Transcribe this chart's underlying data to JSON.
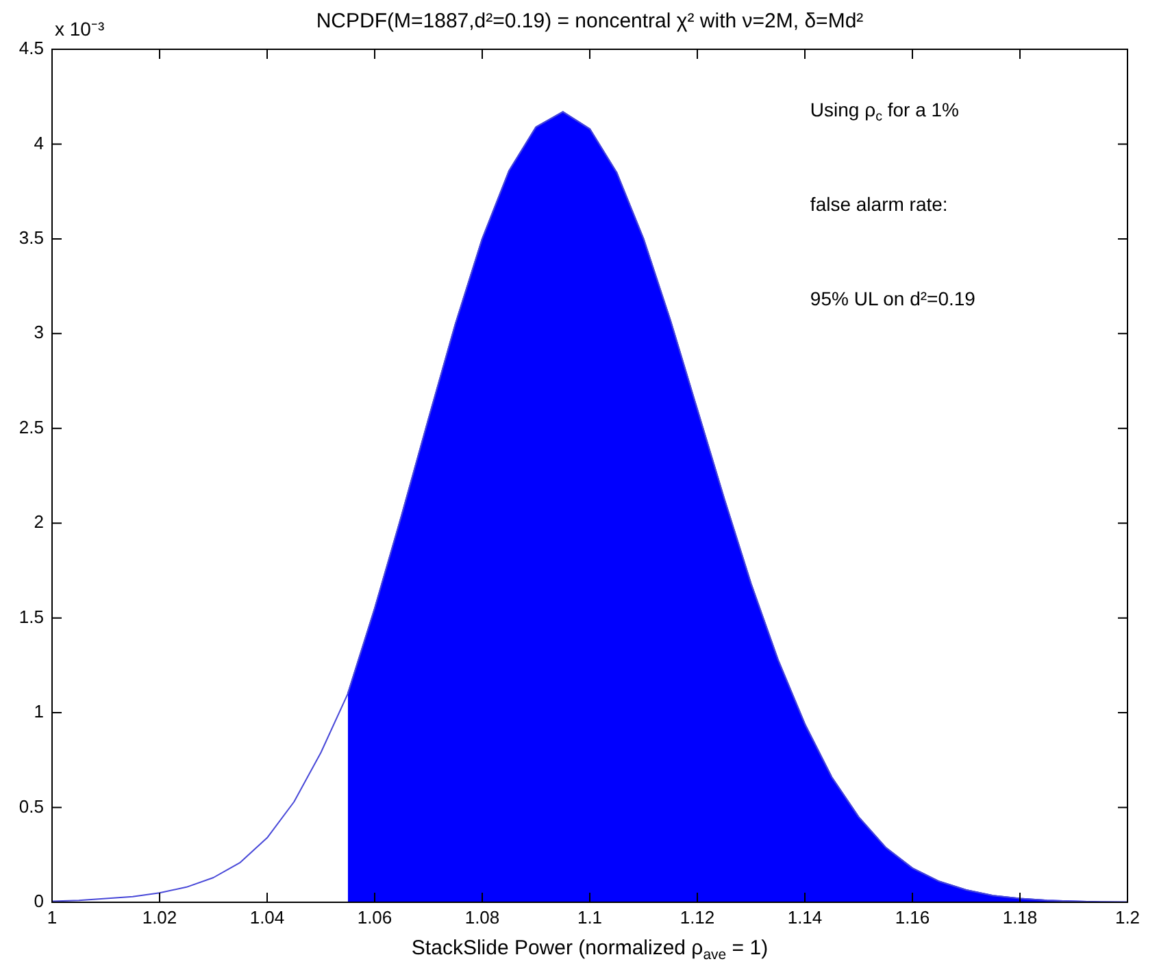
{
  "chart_data": {
    "type": "line",
    "title": "NCPDF(M=1887,d²=0.19) = noncentral χ² with ν=2M, δ=Md²",
    "xlabel": "StackSlide Power (normalized ρ$_{ave}$ = 1)",
    "ylabel": "x 10⁻³",
    "annotations": [
      "Using ρ$_{c}$ for a 1%",
      "false alarm rate:",
      "95% UL on d²=0.19"
    ],
    "series": [
      {
        "color": "#4848d8",
        "x": [
          1.0,
          1.005,
          1.01,
          1.015,
          1.02,
          1.025,
          1.03,
          1.035,
          1.04,
          1.045,
          1.05,
          1.055,
          1.06,
          1.065,
          1.07,
          1.075,
          1.08,
          1.085,
          1.09,
          1.095,
          1.1,
          1.105,
          1.11,
          1.115,
          1.12,
          1.125,
          1.13,
          1.135,
          1.14,
          1.145,
          1.15,
          1.155,
          1.16,
          1.165,
          1.17,
          1.175,
          1.18,
          1.185,
          1.19,
          1.195,
          1.2
        ],
        "values": [
          0.005,
          0.01,
          0.02,
          0.03,
          0.05,
          0.08,
          0.13,
          0.21,
          0.34,
          0.53,
          0.79,
          1.1,
          1.55,
          2.04,
          2.55,
          3.05,
          3.5,
          3.86,
          4.09,
          4.17,
          4.08,
          3.85,
          3.5,
          3.07,
          2.6,
          2.13,
          1.68,
          1.28,
          0.94,
          0.66,
          0.45,
          0.29,
          0.18,
          0.11,
          0.065,
          0.035,
          0.02,
          0.01,
          0.005,
          0.002,
          0.001
        ]
      },
      {
        "type": "area",
        "color": "#0000ff",
        "x": [
          1.055,
          1.06,
          1.065,
          1.07,
          1.075,
          1.08,
          1.085,
          1.09,
          1.095,
          1.1,
          1.105,
          1.11,
          1.115,
          1.12,
          1.125,
          1.13,
          1.135,
          1.14,
          1.145,
          1.15,
          1.155,
          1.16,
          1.165,
          1.17,
          1.175,
          1.18,
          1.185,
          1.19,
          1.195,
          1.2
        ],
        "values": [
          1.1,
          1.55,
          2.04,
          2.55,
          3.05,
          3.5,
          3.86,
          4.09,
          4.17,
          4.08,
          3.85,
          3.5,
          3.07,
          2.6,
          2.13,
          1.68,
          1.28,
          0.94,
          0.66,
          0.45,
          0.29,
          0.18,
          0.11,
          0.065,
          0.035,
          0.02,
          0.01,
          0.005,
          0.002,
          0.001
        ]
      }
    ],
    "xlim": [
      1,
      1.2
    ],
    "xticks": [
      1,
      1.02,
      1.04,
      1.06,
      1.08,
      1.1,
      1.12,
      1.14,
      1.16,
      1.18,
      1.2
    ],
    "ylim": [
      0,
      4.5
    ],
    "yticks": [
      0,
      0.5,
      1,
      1.5,
      2,
      2.5,
      3,
      3.5,
      4,
      4.5
    ],
    "grid": false,
    "legend": false,
    "marker": "none"
  }
}
